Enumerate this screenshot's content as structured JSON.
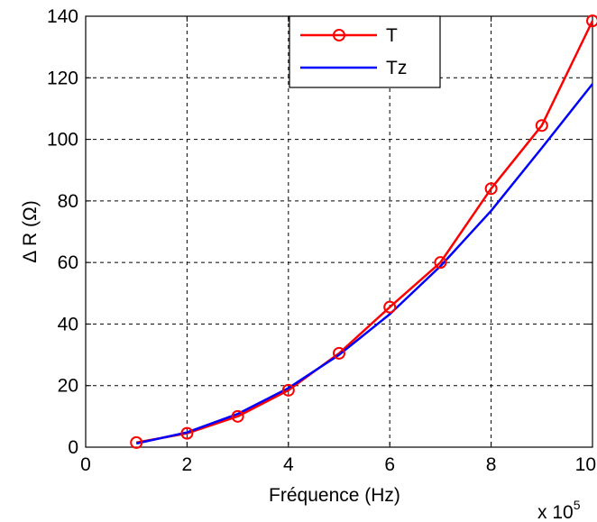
{
  "chart_data": {
    "type": "line",
    "title": "",
    "xlabel": "Fréquence (Hz)",
    "ylabel": "Δ R (Ω)",
    "x_multiplier": "x 10",
    "x_multiplier_exp": "5",
    "xlim": [
      0,
      10
    ],
    "ylim": [
      0,
      140
    ],
    "xticks": [
      "0",
      "2",
      "4",
      "6",
      "8",
      "10"
    ],
    "yticks": [
      "0",
      "20",
      "40",
      "60",
      "80",
      "100",
      "120",
      "140"
    ],
    "grid": true,
    "legend_position": "top-center",
    "series": [
      {
        "name": "T",
        "color": "#ff0000",
        "marker": "circle",
        "x": [
          1,
          2,
          3,
          4,
          5,
          6,
          7,
          8,
          9,
          10
        ],
        "y": [
          1.5,
          4.5,
          10,
          18.5,
          30.5,
          45.5,
          60,
          84,
          104.5,
          138.5
        ]
      },
      {
        "name": "Tz",
        "color": "#0000ff",
        "marker": "none",
        "x": [
          1,
          2,
          3,
          4,
          5,
          6,
          7,
          8,
          9,
          10
        ],
        "y": [
          1.2,
          4.8,
          10.8,
          19.2,
          30,
          43.2,
          58.8,
          76.8,
          97.2,
          118
        ]
      }
    ]
  }
}
